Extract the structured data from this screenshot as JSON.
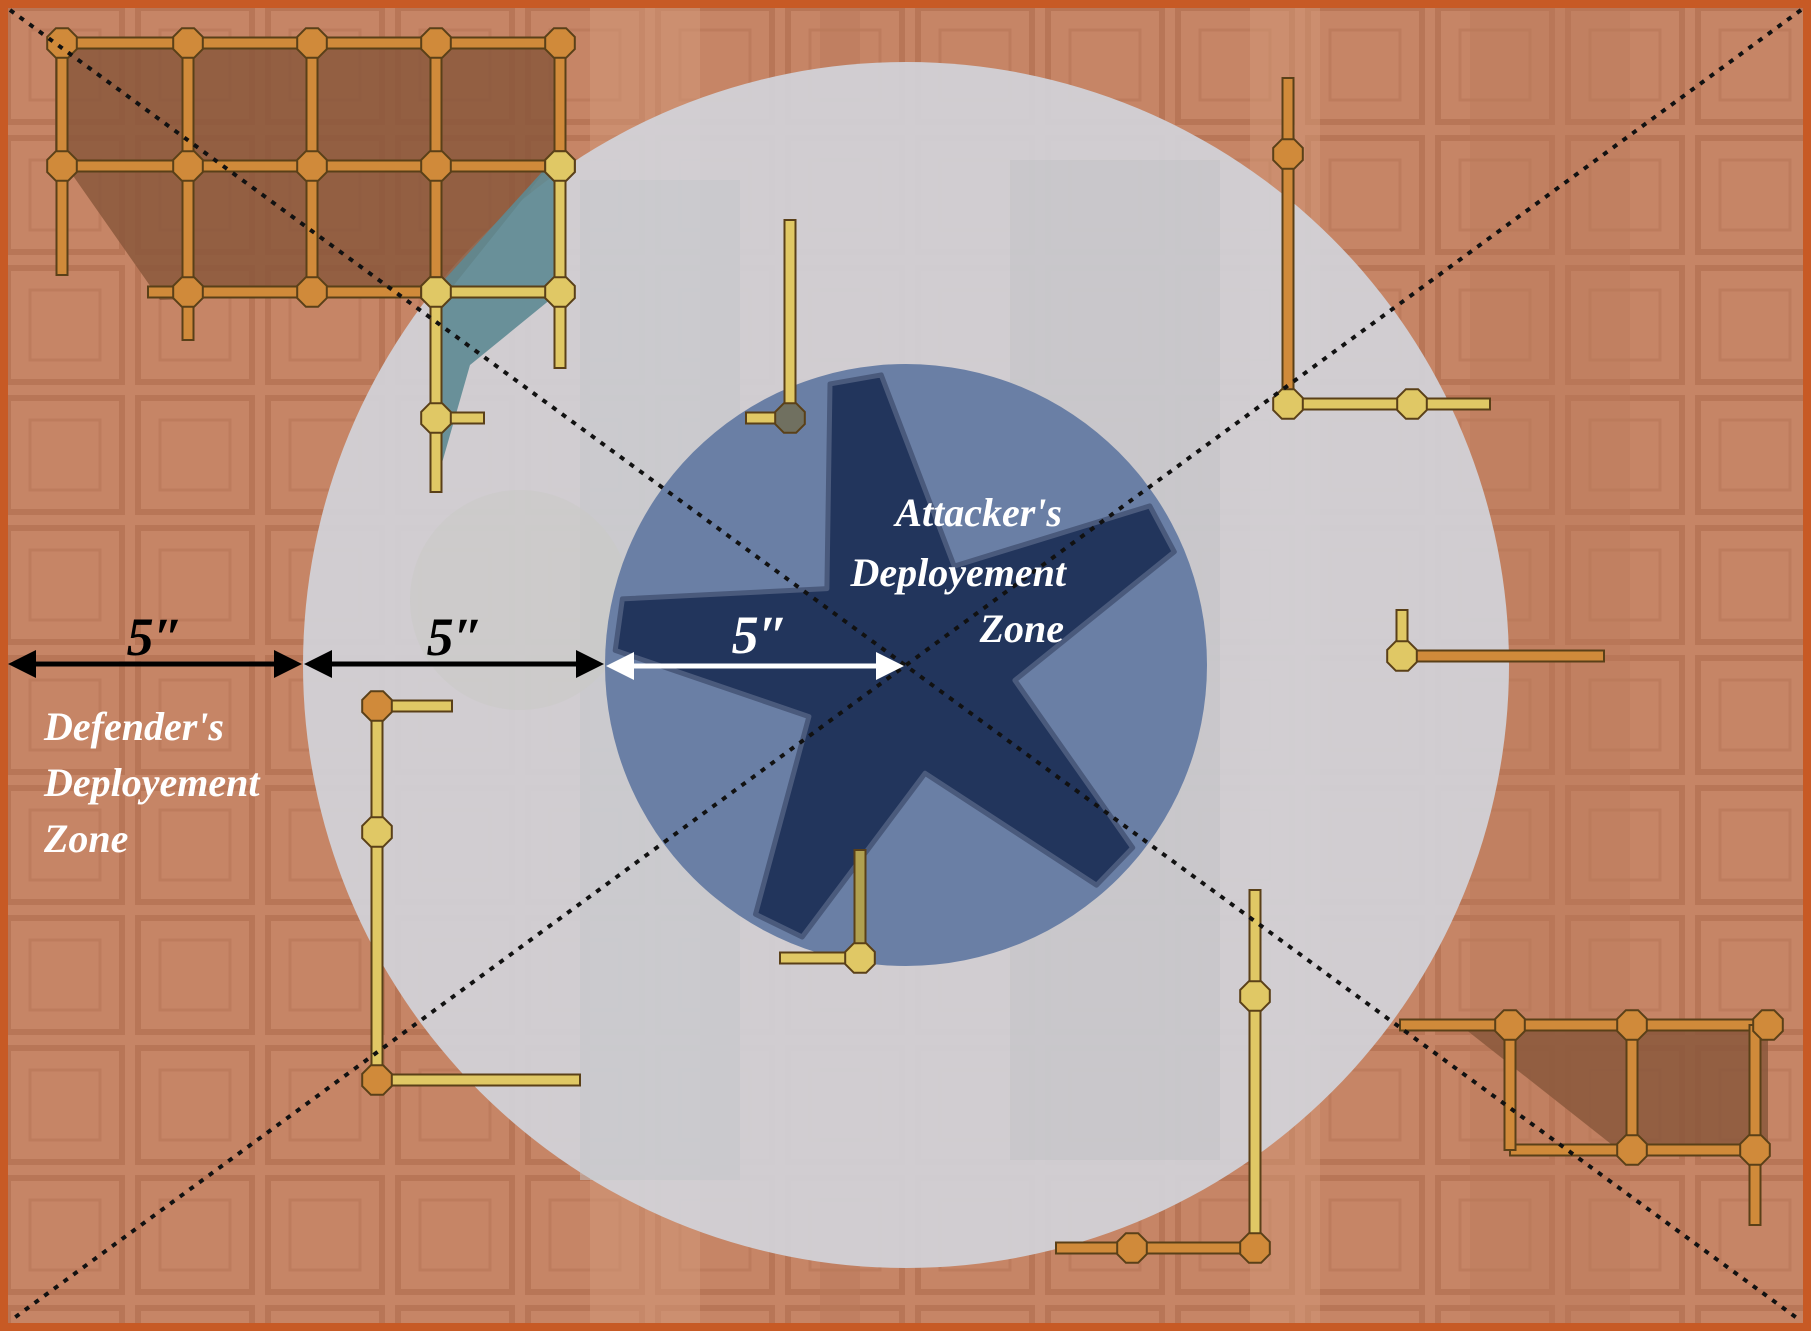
{
  "map": {
    "attacker_zone": [
      "Attacker's",
      "Deployement",
      "Zone"
    ],
    "defender_zone": [
      "Defender's",
      "Deployement",
      "Zone"
    ],
    "distances": [
      "5″",
      "5″",
      "5″"
    ]
  },
  "colors": {
    "border": "#c75a25",
    "defender_zone": "#c98464",
    "neutral_ring": "#d2d3d9",
    "attacker_circle": "#6a7fa5",
    "attacker_star": "#22355c",
    "wall_yellow": "#e0c865",
    "wall_orange": "#d08a3a",
    "ruin_fill": "#8a583c"
  }
}
